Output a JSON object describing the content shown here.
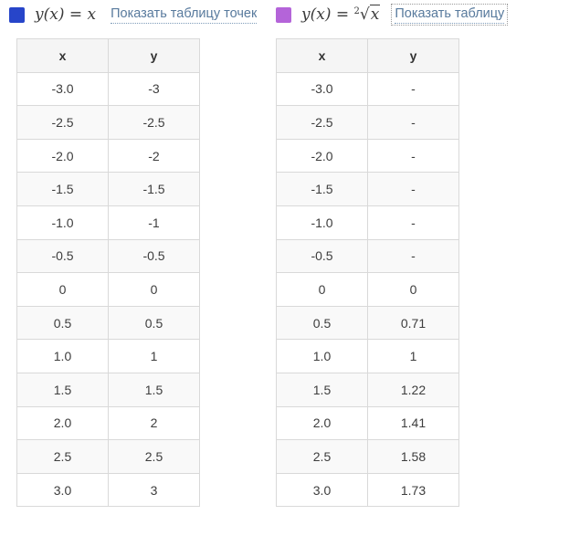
{
  "colors": {
    "linear_swatch": "#2745c9",
    "sqrt_swatch": "#b464d9",
    "link": "#587a9d",
    "table_border": "#d9d9d9",
    "header_bg": "#f5f5f5",
    "stripe_bg": "#f9f9f9"
  },
  "panels": [
    {
      "name": "linear-function",
      "swatch_color": "#2745c9",
      "formula_text": "y(x) = x",
      "toggle_link": "Показать таблицу точек",
      "table": {
        "headers": [
          "x",
          "y"
        ],
        "rows": [
          [
            "-3.0",
            "-3"
          ],
          [
            "-2.5",
            "-2.5"
          ],
          [
            "-2.0",
            "-2"
          ],
          [
            "-1.5",
            "-1.5"
          ],
          [
            "-1.0",
            "-1"
          ],
          [
            "-0.5",
            "-0.5"
          ],
          [
            "0",
            "0"
          ],
          [
            "0.5",
            "0.5"
          ],
          [
            "1.0",
            "1"
          ],
          [
            "1.5",
            "1.5"
          ],
          [
            "2.0",
            "2"
          ],
          [
            "2.5",
            "2.5"
          ],
          [
            "3.0",
            "3"
          ]
        ]
      }
    },
    {
      "name": "sqrt-function",
      "swatch_color": "#b464d9",
      "formula_prefix": "y(x) = ",
      "root_index": "2",
      "radical_symbol": "√",
      "radicand": "x",
      "toggle_link": "Показать таблицу",
      "table": {
        "headers": [
          "x",
          "y"
        ],
        "rows": [
          [
            "-3.0",
            "-"
          ],
          [
            "-2.5",
            "-"
          ],
          [
            "-2.0",
            "-"
          ],
          [
            "-1.5",
            "-"
          ],
          [
            "-1.0",
            "-"
          ],
          [
            "-0.5",
            "-"
          ],
          [
            "0",
            "0"
          ],
          [
            "0.5",
            "0.71"
          ],
          [
            "1.0",
            "1"
          ],
          [
            "1.5",
            "1.22"
          ],
          [
            "2.0",
            "1.41"
          ],
          [
            "2.5",
            "1.58"
          ],
          [
            "3.0",
            "1.73"
          ]
        ]
      }
    }
  ]
}
